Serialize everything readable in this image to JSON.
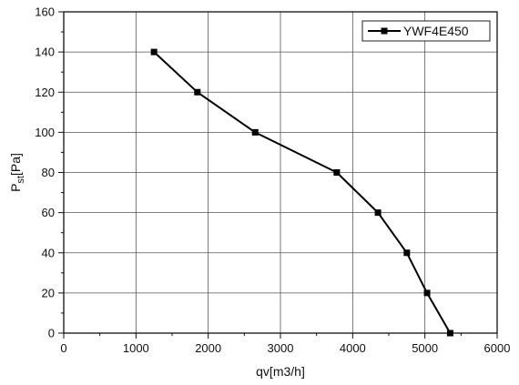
{
  "chart_data": {
    "type": "line",
    "xlabel": "qv[m3/h]",
    "ylabel": "Pst[Pa]",
    "xlim": [
      0,
      6000
    ],
    "ylim": [
      0,
      160
    ],
    "x_ticks": [
      0,
      1000,
      2000,
      3000,
      4000,
      5000,
      6000
    ],
    "y_ticks": [
      0,
      20,
      40,
      60,
      80,
      100,
      120,
      140,
      160
    ],
    "grid": true,
    "legend_position": "top-right",
    "series": [
      {
        "name": "YWF4E450",
        "color": "#000000",
        "marker": "square",
        "points": [
          {
            "x": 1250,
            "y": 140
          },
          {
            "x": 1850,
            "y": 120
          },
          {
            "x": 2650,
            "y": 100
          },
          {
            "x": 3780,
            "y": 80
          },
          {
            "x": 4350,
            "y": 60
          },
          {
            "x": 4750,
            "y": 40
          },
          {
            "x": 5030,
            "y": 20
          },
          {
            "x": 5350,
            "y": 0
          }
        ]
      }
    ]
  }
}
